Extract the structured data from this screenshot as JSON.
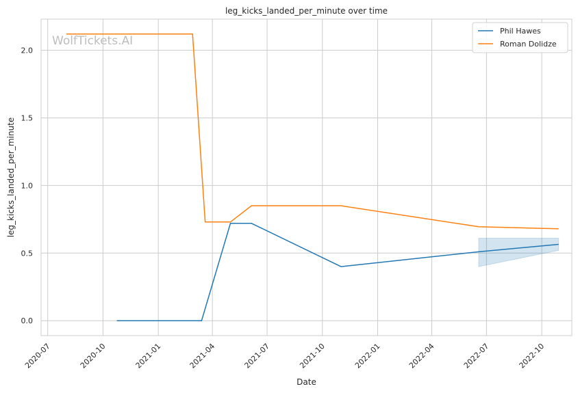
{
  "chart_data": {
    "type": "line",
    "title": "leg_kicks_landed_per_minute over time",
    "xlabel": "Date",
    "ylabel": "leg_kicks_landed_per_minute",
    "watermark": "WolfTickets.AI",
    "grid": true,
    "legend_position": "top-right",
    "x_tick_labels": [
      "2020-07",
      "2020-10",
      "2021-01",
      "2021-04",
      "2021-07",
      "2021-10",
      "2022-01",
      "2022-04",
      "2022-07",
      "2022-10"
    ],
    "y_tick_labels": [
      "0.0",
      "0.5",
      "1.0",
      "1.5",
      "2.0"
    ],
    "xlim": [
      "2020-06-20",
      "2022-11-20"
    ],
    "ylim": [
      -0.11,
      2.23
    ],
    "series": [
      {
        "name": "Phil Hawes",
        "color": "#1f77b4",
        "points": [
          {
            "x": "2020-10-24",
            "y": 0.0
          },
          {
            "x": "2021-03-14",
            "y": 0.0
          },
          {
            "x": "2021-05-01",
            "y": 0.72
          },
          {
            "x": "2021-06-05",
            "y": 0.72
          },
          {
            "x": "2021-11-01",
            "y": 0.4
          },
          {
            "x": "2022-06-18",
            "y": 0.51
          },
          {
            "x": "2022-10-29",
            "y": 0.565
          }
        ],
        "band": [
          {
            "x": "2022-06-18",
            "lower": 0.4,
            "upper": 0.61
          },
          {
            "x": "2022-10-29",
            "lower": 0.52,
            "upper": 0.61
          }
        ]
      },
      {
        "name": "Roman Dolidze",
        "color": "#ff7f0e",
        "points": [
          {
            "x": "2020-08-01",
            "y": 2.12
          },
          {
            "x": "2021-02-27",
            "y": 2.12
          },
          {
            "x": "2021-03-20",
            "y": 0.73
          },
          {
            "x": "2021-05-01",
            "y": 0.73
          },
          {
            "x": "2021-06-05",
            "y": 0.85
          },
          {
            "x": "2021-11-01",
            "y": 0.85
          },
          {
            "x": "2022-06-18",
            "y": 0.695
          },
          {
            "x": "2022-10-29",
            "y": 0.68
          }
        ]
      }
    ]
  }
}
